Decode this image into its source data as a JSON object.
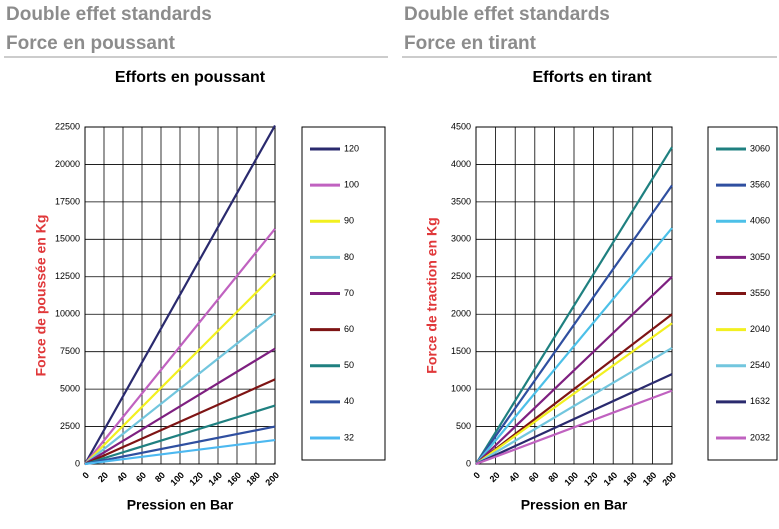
{
  "headers": [
    {
      "line1": "Double effet standards",
      "line2": "Force en poussant"
    },
    {
      "line1": "Double effet standards",
      "line2": "Force en tirant"
    }
  ],
  "chart_data": [
    {
      "type": "line",
      "title": "Efforts en poussant",
      "ylabel": "Force de poussée  en Kg",
      "xlabel": "Pression  en Bar",
      "x": [
        0,
        200
      ],
      "xlim": [
        0,
        200
      ],
      "xticks": [
        0,
        20,
        40,
        60,
        80,
        100,
        120,
        140,
        160,
        180,
        200
      ],
      "ylim": [
        0,
        22500
      ],
      "yticks": [
        0,
        2500,
        5000,
        7500,
        10000,
        12500,
        15000,
        17500,
        20000,
        22500
      ],
      "grid": true,
      "legend": "right",
      "series": [
        {
          "name": "120",
          "color": "#2a2a6e",
          "values": [
            0,
            22600
          ]
        },
        {
          "name": "100",
          "color": "#c062c0",
          "values": [
            0,
            15700
          ]
        },
        {
          "name": "90",
          "color": "#f2f020",
          "values": [
            0,
            12700
          ]
        },
        {
          "name": "80",
          "color": "#72c6de",
          "values": [
            0,
            10050
          ]
        },
        {
          "name": "70",
          "color": "#7e2080",
          "values": [
            0,
            7700
          ]
        },
        {
          "name": "60",
          "color": "#7e1414",
          "values": [
            0,
            5650
          ]
        },
        {
          "name": "50",
          "color": "#1f8080",
          "values": [
            0,
            3900
          ]
        },
        {
          "name": "40",
          "color": "#2f4fa0",
          "values": [
            0,
            2500
          ]
        },
        {
          "name": "32",
          "color": "#4cb8f0",
          "values": [
            0,
            1600
          ]
        }
      ]
    },
    {
      "type": "line",
      "title": "Efforts en tirant",
      "ylabel": "Force de traction  en Kg",
      "xlabel": "Pression  en Bar",
      "x": [
        0,
        200
      ],
      "xlim": [
        0,
        200
      ],
      "xticks": [
        0,
        20,
        40,
        60,
        80,
        100,
        120,
        140,
        160,
        180,
        200
      ],
      "ylim": [
        0,
        4500
      ],
      "yticks": [
        0,
        500,
        1000,
        1500,
        2000,
        2500,
        3000,
        3500,
        4000,
        4500
      ],
      "grid": true,
      "legend": "right",
      "series": [
        {
          "name": "3060",
          "color": "#1f8080",
          "values": [
            0,
            4230
          ]
        },
        {
          "name": "3560",
          "color": "#2f4fa0",
          "values": [
            0,
            3720
          ]
        },
        {
          "name": "4060",
          "color": "#4cc0e8",
          "values": [
            0,
            3150
          ]
        },
        {
          "name": "3050",
          "color": "#7e2080",
          "values": [
            0,
            2500
          ]
        },
        {
          "name": "3550",
          "color": "#7e1414",
          "values": [
            0,
            2000
          ]
        },
        {
          "name": "2040",
          "color": "#f2f020",
          "values": [
            0,
            1880
          ]
        },
        {
          "name": "2540",
          "color": "#72c6de",
          "values": [
            0,
            1550
          ]
        },
        {
          "name": "1632",
          "color": "#2a2a6e",
          "values": [
            0,
            1200
          ]
        },
        {
          "name": "2032",
          "color": "#c062c0",
          "values": [
            0,
            980
          ]
        }
      ]
    }
  ]
}
